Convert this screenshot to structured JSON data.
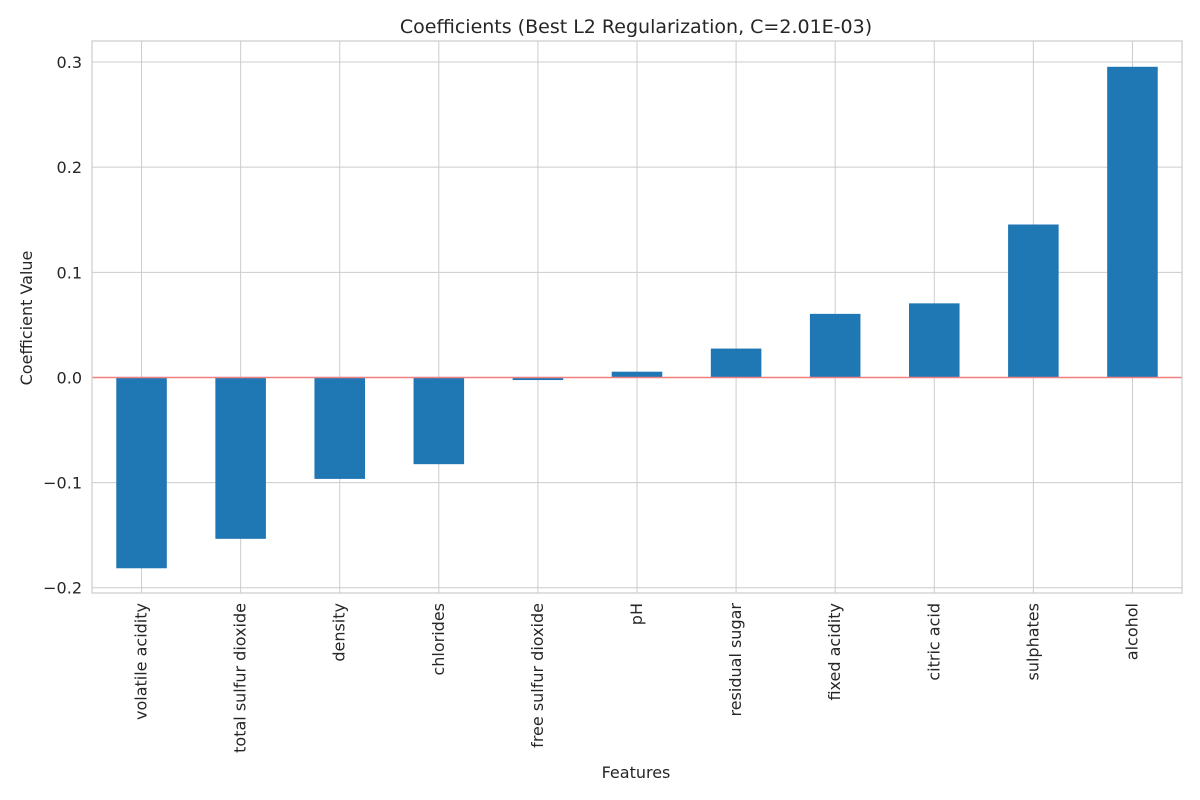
{
  "chart_data": {
    "type": "bar",
    "title": "Coefficients (Best L2 Regularization, C=2.01E-03)",
    "xlabel": "Features",
    "ylabel": "Coefficient Value",
    "categories": [
      "volatile acidity",
      "total sulfur dioxide",
      "density",
      "chlorides",
      "free sulfur dioxide",
      "pH",
      "residual sugar",
      "fixed acidity",
      "citric acid",
      "sulphates",
      "alcohol"
    ],
    "values": [
      -0.181,
      -0.153,
      -0.096,
      -0.082,
      -0.002,
      0.005,
      0.027,
      0.06,
      0.07,
      0.145,
      0.295
    ],
    "ylim": [
      -0.205,
      0.32
    ],
    "yticks": [
      -0.2,
      -0.1,
      0.0,
      0.1,
      0.2,
      0.3
    ],
    "ytick_labels": [
      "−0.2",
      "−0.1",
      "0.0",
      "0.1",
      "0.2",
      "0.3"
    ],
    "grid": true,
    "legend": "none",
    "reference_line": {
      "y": 0,
      "color": "#f08080"
    },
    "colors": {
      "bar": "#1f77b4",
      "bar_edge": "#1f77b4",
      "grid": "#cccccc",
      "text": "#262626"
    }
  }
}
